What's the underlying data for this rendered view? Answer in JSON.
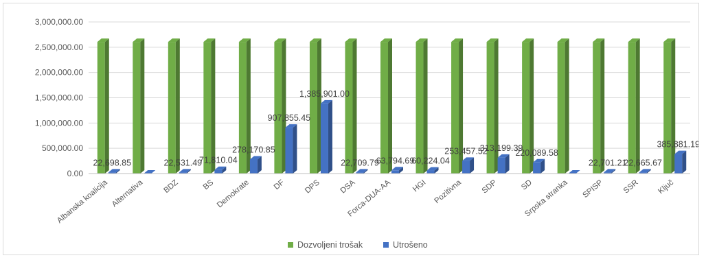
{
  "chart_data": {
    "type": "bar",
    "categories": [
      "Albanska koalicija",
      "Alternativa",
      "BDZ",
      "BS",
      "Demokrate",
      "DF",
      "DPS",
      "DSA",
      "Forca-DUA-AA",
      "HGI",
      "Pozitivna",
      "SDP",
      "SD",
      "Srpska stranka",
      "SPISP",
      "SSR",
      "Ključ"
    ],
    "series": [
      {
        "name": "Dozvoljeni trošak",
        "color": "#70ad47",
        "values": [
          2605000,
          2605000,
          2605000,
          2605000,
          2605000,
          2605000,
          2605000,
          2605000,
          2605000,
          2605000,
          2605000,
          2605000,
          2605000,
          2605000,
          2605000,
          2605000,
          2605000
        ],
        "labels": [
          "",
          "",
          "",
          "",
          "",
          "",
          "",
          "",
          "",
          "",
          "",
          "",
          "",
          "",
          "",
          "",
          ""
        ]
      },
      {
        "name": "Utrošeno",
        "color": "#4472c4",
        "values": [
          22698.85,
          0,
          22531.49,
          71810.04,
          278170.85,
          907855.45,
          1385901.0,
          22709.79,
          63794.69,
          60224.04,
          253457.52,
          313199.39,
          220089.58,
          0,
          22701.21,
          22665.67,
          385881.19
        ],
        "labels": [
          "22,698.85",
          "",
          "22,531.49",
          "71,810.04",
          "278,170.85",
          "907,855.45",
          "1,385,901.00",
          "22,709.79",
          "63,794.69",
          "60,224.04",
          "253,457.52",
          "313,199.39",
          "220,089.58",
          "",
          "22,701.21",
          "22,665.67",
          "385,881.19"
        ]
      }
    ],
    "yticks": [
      "0.00",
      "500,000.00",
      "1,000,000.00",
      "1,500,000.00",
      "2,000,000.00",
      "2,500,000.00",
      "3,000,000.00"
    ],
    "ylim": [
      0,
      3000000
    ],
    "grid": true,
    "legend": "bottom"
  }
}
